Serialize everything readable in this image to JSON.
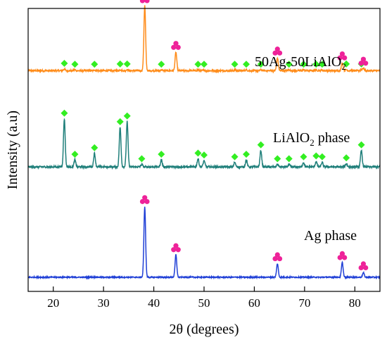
{
  "chart_data": {
    "type": "line",
    "title": "",
    "xlabel": "2θ (degrees)",
    "ylabel": "Intensity (a.u)",
    "xlim": [
      15,
      85
    ],
    "ylim": [
      0,
      100
    ],
    "x_ticks": [
      20,
      30,
      40,
      50,
      60,
      70,
      80
    ],
    "y_ticks_shown": false,
    "grid": false,
    "legend": "none (inline series labels)",
    "colors": {
      "composite": "#ff8c1a",
      "lialo2": "#1f7f7a",
      "ag": "#1f3fd6",
      "lialo2_marker": "#33ee22",
      "ag_marker": "#ee2299"
    },
    "markers": {
      "lialo2": "green diamond",
      "ag": "pink trefoil"
    },
    "series": [
      {
        "label_parts": [
          "50Ag-50LiAlO",
          "2"
        ],
        "baseline": 78,
        "noise": 0.6,
        "peaks": [
          {
            "x": 22.2,
            "h": 0.6,
            "phase": "lialo2"
          },
          {
            "x": 24.3,
            "h": 0.3,
            "phase": "lialo2"
          },
          {
            "x": 28.2,
            "h": 0.3,
            "phase": "lialo2"
          },
          {
            "x": 33.3,
            "h": 0.4,
            "phase": "lialo2"
          },
          {
            "x": 34.7,
            "h": 0.4,
            "phase": "lialo2"
          },
          {
            "x": 38.2,
            "h": 23,
            "phase": "ag"
          },
          {
            "x": 41.5,
            "h": 0.3,
            "phase": "lialo2"
          },
          {
            "x": 44.4,
            "h": 6.5,
            "phase": "ag"
          },
          {
            "x": 48.8,
            "h": 0.3,
            "phase": "lialo2"
          },
          {
            "x": 50.0,
            "h": 0.3,
            "phase": "lialo2"
          },
          {
            "x": 56.1,
            "h": 0.3,
            "phase": "lialo2"
          },
          {
            "x": 58.4,
            "h": 0.3,
            "phase": "lialo2"
          },
          {
            "x": 61.3,
            "h": 0.3,
            "phase": "lialo2"
          },
          {
            "x": 64.6,
            "h": 4.5,
            "phase": "ag"
          },
          {
            "x": 66.9,
            "h": 0.3,
            "phase": "lialo2"
          },
          {
            "x": 69.8,
            "h": 0.3,
            "phase": "lialo2"
          },
          {
            "x": 72.3,
            "h": 0.3,
            "phase": "lialo2"
          },
          {
            "x": 73.5,
            "h": 0.3,
            "phase": "lialo2"
          },
          {
            "x": 77.5,
            "h": 2.8,
            "phase": "ag"
          },
          {
            "x": 78.3,
            "h": 0.4,
            "phase": "lialo2"
          },
          {
            "x": 81.3,
            "h": 0.4,
            "phase": "lialo2"
          },
          {
            "x": 81.7,
            "h": 0.9,
            "phase": "ag"
          }
        ]
      },
      {
        "label_parts": [
          "LiAlO",
          "2",
          " phase"
        ],
        "baseline": 44,
        "noise": 0.7,
        "peaks": [
          {
            "x": 22.2,
            "h": 17,
            "phase": "lialo2"
          },
          {
            "x": 24.3,
            "h": 2.5,
            "phase": "lialo2"
          },
          {
            "x": 28.2,
            "h": 4.8,
            "phase": "lialo2"
          },
          {
            "x": 33.3,
            "h": 14,
            "phase": "lialo2"
          },
          {
            "x": 34.7,
            "h": 16,
            "phase": "lialo2"
          },
          {
            "x": 37.6,
            "h": 0.9,
            "phase": "lialo2"
          },
          {
            "x": 41.5,
            "h": 2.5,
            "phase": "lialo2"
          },
          {
            "x": 48.8,
            "h": 2.9,
            "phase": "lialo2"
          },
          {
            "x": 50.0,
            "h": 2.2,
            "phase": "lialo2"
          },
          {
            "x": 56.1,
            "h": 1.6,
            "phase": "lialo2"
          },
          {
            "x": 58.4,
            "h": 2.5,
            "phase": "lialo2"
          },
          {
            "x": 61.3,
            "h": 5.8,
            "phase": "lialo2"
          },
          {
            "x": 64.6,
            "h": 0.9,
            "phase": "lialo2"
          },
          {
            "x": 66.9,
            "h": 0.9,
            "phase": "lialo2"
          },
          {
            "x": 69.8,
            "h": 1.6,
            "phase": "lialo2"
          },
          {
            "x": 72.3,
            "h": 1.9,
            "phase": "lialo2"
          },
          {
            "x": 73.5,
            "h": 1.6,
            "phase": "lialo2"
          },
          {
            "x": 78.3,
            "h": 1.2,
            "phase": "lialo2"
          },
          {
            "x": 81.3,
            "h": 5.8,
            "phase": "lialo2"
          }
        ]
      },
      {
        "label_parts": [
          "Ag phase"
        ],
        "baseline": 5,
        "noise": 0.4,
        "peaks": [
          {
            "x": 38.2,
            "h": 25,
            "phase": "ag"
          },
          {
            "x": 44.4,
            "h": 8,
            "phase": "ag"
          },
          {
            "x": 64.6,
            "h": 4.8,
            "phase": "ag"
          },
          {
            "x": 77.5,
            "h": 5.2,
            "phase": "ag"
          },
          {
            "x": 81.7,
            "h": 1.6,
            "phase": "ag"
          }
        ]
      }
    ]
  }
}
